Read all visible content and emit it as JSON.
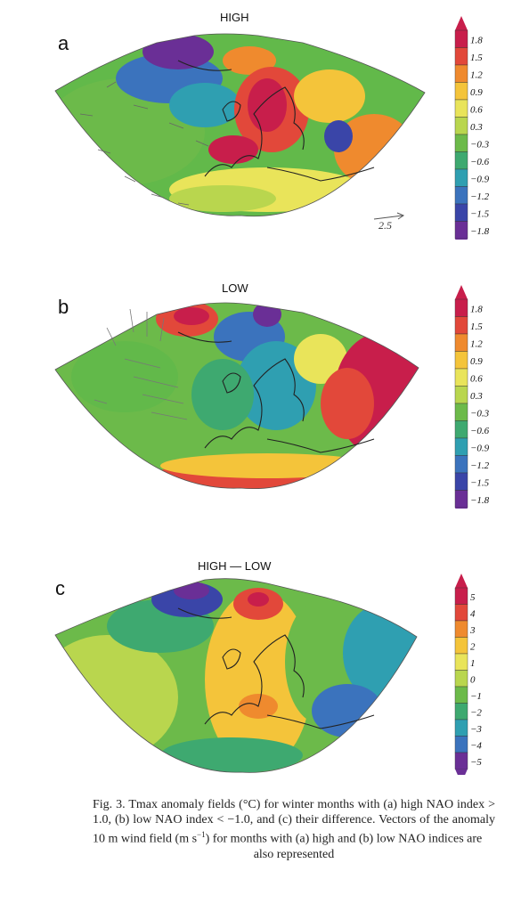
{
  "figure": {
    "panels": [
      {
        "id": "a",
        "letter": "a",
        "title": "HIGH",
        "colorbar_labels": [
          "1.8",
          "1.5",
          "1.2",
          "0.9",
          "0.6",
          "0.3",
          "−0.3",
          "−0.6",
          "−0.9",
          "−1.2",
          "−1.5",
          "−1.8"
        ],
        "scale_vector_label": "2.5"
      },
      {
        "id": "b",
        "letter": "b",
        "title": "LOW",
        "colorbar_labels": [
          "1.8",
          "1.5",
          "1.2",
          "0.9",
          "0.6",
          "0.3",
          "−0.3",
          "−0.6",
          "−0.9",
          "−1.2",
          "−1.5",
          "−1.8"
        ]
      },
      {
        "id": "c",
        "letter": "c",
        "title": "HIGH — LOW",
        "colorbar_labels": [
          "5",
          "4",
          "3",
          "2",
          "1",
          "0",
          "−1",
          "−2",
          "−3",
          "−4",
          "−5"
        ]
      }
    ],
    "colors": {
      "temperature_scale_12": [
        "#c81e4b",
        "#e2483a",
        "#ef8a2e",
        "#f4c43a",
        "#e9e45a",
        "#b9d64e",
        "#6cba4a",
        "#3ea970",
        "#2f9fb1",
        "#3b73bd",
        "#3a45a8",
        "#6a2f96"
      ],
      "difference_scale_11": [
        "#c81e4b",
        "#e2483a",
        "#ef8a2e",
        "#f4c43a",
        "#e9e45a",
        "#b9d64e",
        "#6cba4a",
        "#3ea970",
        "#2f9fb1",
        "#3b73bd",
        "#6a2f96"
      ]
    },
    "caption": {
      "main": "Fig. 3. Tmax anomaly fields (°C) for winter months with (a) high NAO index > 1.0, (b) low NAO index < −1.0, and (c) their difference. Vectors of the anomaly 10 m wind field (m s",
      "superscript": "−1",
      "rest": ") for months with (a) high and (b) low NAO indices are",
      "last_line": "also represented"
    }
  }
}
